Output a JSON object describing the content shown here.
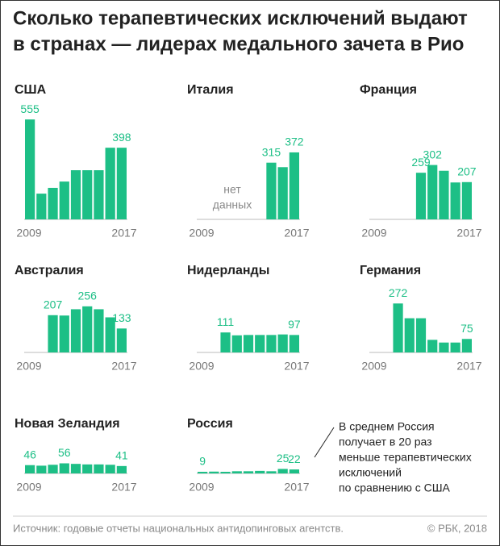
{
  "title": [
    "Сколько терапевтических исключений выдают",
    "в странах — лидерах медального зачета в Рио"
  ],
  "source": "Источник: годовые отчеты национальных антидопинговых агентств.",
  "copyright": "© РБК, 2018",
  "chart_data": [
    {
      "type": "bar",
      "title": "США",
      "categories": [
        "2009",
        null,
        null,
        null,
        null,
        null,
        null,
        null,
        "2017"
      ],
      "values": [
        555,
        143,
        175,
        210,
        273,
        273,
        273,
        398,
        398
      ],
      "labeled": [
        0,
        8
      ],
      "color": "#1dbf86",
      "ylim": [
        0,
        560
      ]
    },
    {
      "type": "bar",
      "title": "Италия",
      "categories": [
        "2009",
        null,
        null,
        null,
        null,
        null,
        null,
        null,
        "2017"
      ],
      "values": [
        null,
        null,
        null,
        null,
        null,
        null,
        315,
        290,
        372
      ],
      "labeled": [
        6,
        8
      ],
      "color": "#1dbf86",
      "ylim": [
        0,
        560
      ],
      "annotation": [
        "нет",
        "данных"
      ]
    },
    {
      "type": "bar",
      "title": "Франция",
      "categories": [
        "2009",
        null,
        null,
        null,
        null,
        null,
        null,
        null,
        "2017"
      ],
      "values": [
        null,
        null,
        null,
        null,
        259,
        302,
        270,
        205,
        207
      ],
      "labeled": [
        4,
        5,
        8
      ],
      "color": "#1dbf86",
      "ylim": [
        0,
        560
      ]
    },
    {
      "type": "bar",
      "title": "Австралия",
      "categories": [
        "2009",
        null,
        null,
        null,
        null,
        null,
        null,
        null,
        "2017"
      ],
      "values": [
        null,
        null,
        207,
        205,
        240,
        256,
        240,
        195,
        133
      ],
      "labeled": [
        2,
        5,
        8
      ],
      "color": "#1dbf86",
      "ylim": [
        0,
        560
      ]
    },
    {
      "type": "bar",
      "title": "Нидерланды",
      "categories": [
        "2009",
        null,
        null,
        null,
        null,
        null,
        null,
        null,
        "2017"
      ],
      "values": [
        null,
        null,
        111,
        95,
        97,
        97,
        97,
        100,
        97
      ],
      "labeled": [
        2,
        8
      ],
      "color": "#1dbf86",
      "ylim": [
        0,
        560
      ]
    },
    {
      "type": "bar",
      "title": "Германия",
      "categories": [
        "2009",
        null,
        null,
        null,
        null,
        null,
        null,
        null,
        "2017"
      ],
      "values": [
        null,
        null,
        272,
        190,
        190,
        70,
        55,
        55,
        75
      ],
      "labeled": [
        2,
        8
      ],
      "color": "#1dbf86",
      "ylim": [
        0,
        560
      ]
    },
    {
      "type": "bar",
      "title": "Новая Зеландия",
      "categories": [
        "2009",
        null,
        null,
        null,
        null,
        null,
        null,
        null,
        "2017"
      ],
      "values": [
        46,
        43,
        48,
        56,
        53,
        50,
        50,
        48,
        41
      ],
      "labeled": [
        0,
        3,
        8
      ],
      "color": "#1dbf86",
      "ylim": [
        0,
        560
      ]
    },
    {
      "type": "bar",
      "title": "Россия",
      "categories": [
        "2009",
        null,
        null,
        null,
        null,
        null,
        null,
        null,
        "2017"
      ],
      "values": [
        9,
        10,
        9,
        12,
        12,
        14,
        12,
        25,
        22
      ],
      "labeled": [
        0,
        7,
        8
      ],
      "color": "#1dbf86",
      "ylim": [
        0,
        560
      ],
      "annotation": [
        "В среднем Россия",
        "получает в 20 раз",
        "меньше терапевтических",
        "исключений",
        "по сравнению с США"
      ]
    }
  ]
}
